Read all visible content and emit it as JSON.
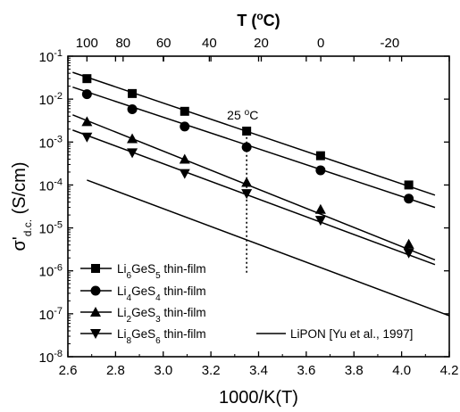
{
  "chart_data": {
    "type": "scatter",
    "x_axis": {
      "label": "1000/K(T)",
      "range": [
        2.6,
        4.2
      ],
      "ticks": [
        "2.6",
        "2.8",
        "3.0",
        "3.2",
        "3.4",
        "3.6",
        "3.8",
        "4.0",
        "4.2"
      ]
    },
    "top_axis": {
      "label_main": "T (",
      "label_sup": "o",
      "label_end": "C)",
      "ticks": [
        {
          "label": "100",
          "celsius": 100
        },
        {
          "label": "80",
          "celsius": 80
        },
        {
          "label": "60",
          "celsius": 60
        },
        {
          "label": "40",
          "celsius": 40
        },
        {
          "label": "20",
          "celsius": 20
        },
        {
          "label": "0",
          "celsius": 0
        },
        {
          "label": "-20",
          "celsius": -20
        }
      ]
    },
    "y_axis": {
      "label_main": "σ'",
      "label_sub": "d.c.",
      "label_unit": "(S/cm)",
      "scale": "log",
      "range": [
        1e-08,
        0.1
      ],
      "ticks": [
        {
          "base": "10",
          "exp": "-8",
          "value": 1e-08
        },
        {
          "base": "10",
          "exp": "-7",
          "value": 1e-07
        },
        {
          "base": "10",
          "exp": "-6",
          "value": 1e-06
        },
        {
          "base": "10",
          "exp": "-5",
          "value": 1e-05
        },
        {
          "base": "10",
          "exp": "-4",
          "value": 0.0001
        },
        {
          "base": "10",
          "exp": "-3",
          "value": 0.001
        },
        {
          "base": "10",
          "exp": "-2",
          "value": 0.01
        },
        {
          "base": "10",
          "exp": "-1",
          "value": 0.1
        }
      ]
    },
    "series": [
      {
        "name_parts": [
          "Li",
          "6",
          "GeS",
          "5",
          " thin-film"
        ],
        "marker": "square",
        "points": [
          [
            2.68,
            0.03
          ],
          [
            2.87,
            0.0135
          ],
          [
            3.09,
            0.0052
          ],
          [
            3.35,
            0.0018
          ],
          [
            3.66,
            0.00048
          ],
          [
            4.03,
            0.0001
          ]
        ],
        "fit": [
          [
            2.62,
            0.042
          ],
          [
            4.14,
            5.8e-05
          ]
        ]
      },
      {
        "name_parts": [
          "Li",
          "4",
          "GeS",
          "4",
          " thin-film"
        ],
        "marker": "circle",
        "points": [
          [
            2.68,
            0.013
          ],
          [
            2.87,
            0.0058
          ],
          [
            3.09,
            0.0023
          ],
          [
            3.35,
            0.00076
          ],
          [
            3.66,
            0.00022
          ],
          [
            4.03,
            4.8e-05
          ]
        ],
        "fit": [
          [
            2.62,
            0.019
          ],
          [
            4.14,
            3e-05
          ]
        ]
      },
      {
        "name_parts": [
          "Li",
          "2",
          "GeS",
          "3",
          " thin-film"
        ],
        "marker": "triangle-up",
        "points": [
          [
            2.68,
            0.003
          ],
          [
            2.87,
            0.0012
          ],
          [
            3.09,
            0.0004
          ],
          [
            3.35,
            0.000115
          ],
          [
            3.66,
            2.7e-05
          ],
          [
            4.03,
            4.2e-06
          ]
        ],
        "fit": [
          [
            2.62,
            0.0043
          ],
          [
            4.14,
            1.8e-06
          ]
        ]
      },
      {
        "name_parts": [
          "Li",
          "8",
          "GeS",
          "6",
          " thin-film"
        ],
        "marker": "triangle-down",
        "points": [
          [
            2.68,
            0.0013
          ],
          [
            2.87,
            0.00056
          ],
          [
            3.09,
            0.000185
          ],
          [
            3.35,
            6.3e-05
          ],
          [
            3.66,
            1.5e-05
          ],
          [
            4.03,
            2.6e-06
          ]
        ],
        "fit": [
          [
            2.62,
            0.0019
          ],
          [
            4.14,
            1.4e-06
          ]
        ]
      },
      {
        "name_parts": [
          "LiPON [Yu et al., 1997]"
        ],
        "marker": "none",
        "points": [],
        "fit": [
          [
            2.68,
            0.00013
          ],
          [
            4.2,
            9e-08
          ]
        ]
      }
    ],
    "annotation": {
      "label_main": "25 ",
      "label_sup": "o",
      "label_end": "C",
      "x": 3.35,
      "y_range": [
        9e-07,
        0.0013
      ]
    },
    "legend": {
      "position": "bottom"
    }
  }
}
